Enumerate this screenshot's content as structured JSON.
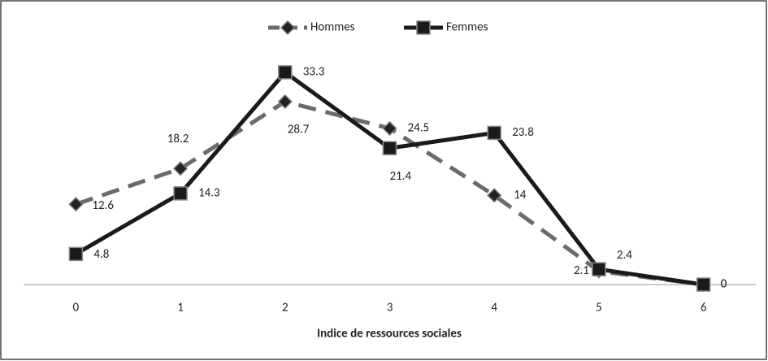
{
  "chart_data": {
    "type": "line",
    "x_label": "Indice de ressources sociales",
    "categories": [
      "0",
      "1",
      "2",
      "3",
      "4",
      "5",
      "6"
    ],
    "series": [
      {
        "name": "Hommes",
        "color": "#6b6b6b",
        "dashed": true,
        "marker": "diamond",
        "values": [
          12.6,
          18.2,
          28.7,
          24.5,
          14,
          2.1,
          0
        ]
      },
      {
        "name": "Femmes",
        "color": "#1a1a1a",
        "dashed": false,
        "marker": "square",
        "values": [
          4.8,
          14.3,
          33.3,
          21.4,
          23.8,
          2.4,
          0
        ]
      }
    ],
    "ylim": [
      0,
      35
    ],
    "legend": "top"
  }
}
